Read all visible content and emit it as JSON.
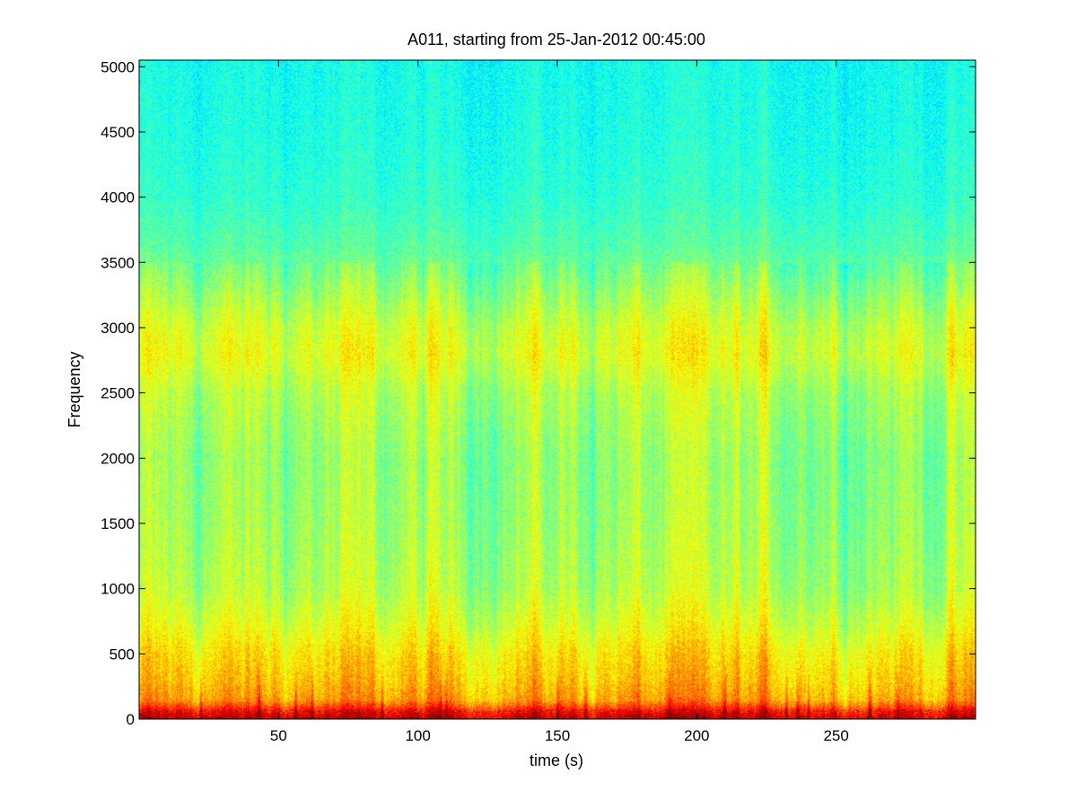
{
  "chart_data": {
    "type": "heatmap",
    "title": "A011, starting from 25-Jan-2012 00:45:00",
    "xlabel": "time (s)",
    "ylabel": "Frequency",
    "xlim": [
      0,
      300
    ],
    "ylim": [
      0,
      5050
    ],
    "xticks": [
      50,
      100,
      150,
      200,
      250
    ],
    "yticks": [
      0,
      500,
      1000,
      1500,
      2000,
      2500,
      3000,
      3500,
      4000,
      4500,
      5000
    ],
    "colormap": "jet",
    "grid": false,
    "frequency_profile": [
      {
        "frequency": 0,
        "level": 0.93
      },
      {
        "frequency": 60,
        "level": 0.86
      },
      {
        "frequency": 150,
        "level": 0.72
      },
      {
        "frequency": 300,
        "level": 0.68
      },
      {
        "frequency": 500,
        "level": 0.65
      },
      {
        "frequency": 700,
        "level": 0.6
      },
      {
        "frequency": 1000,
        "level": 0.55
      },
      {
        "frequency": 1500,
        "level": 0.53
      },
      {
        "frequency": 2000,
        "level": 0.52
      },
      {
        "frequency": 2500,
        "level": 0.55
      },
      {
        "frequency": 2800,
        "level": 0.6
      },
      {
        "frequency": 3000,
        "level": 0.58
      },
      {
        "frequency": 3300,
        "level": 0.52
      },
      {
        "frequency": 3600,
        "level": 0.46
      },
      {
        "frequency": 4000,
        "level": 0.42
      },
      {
        "frequency": 4500,
        "level": 0.4
      },
      {
        "frequency": 5050,
        "level": 0.39
      }
    ],
    "broadband_events_s": [
      22,
      43,
      56,
      62,
      87,
      108,
      110,
      150,
      160,
      190,
      210,
      232,
      236,
      240,
      262,
      272
    ]
  }
}
